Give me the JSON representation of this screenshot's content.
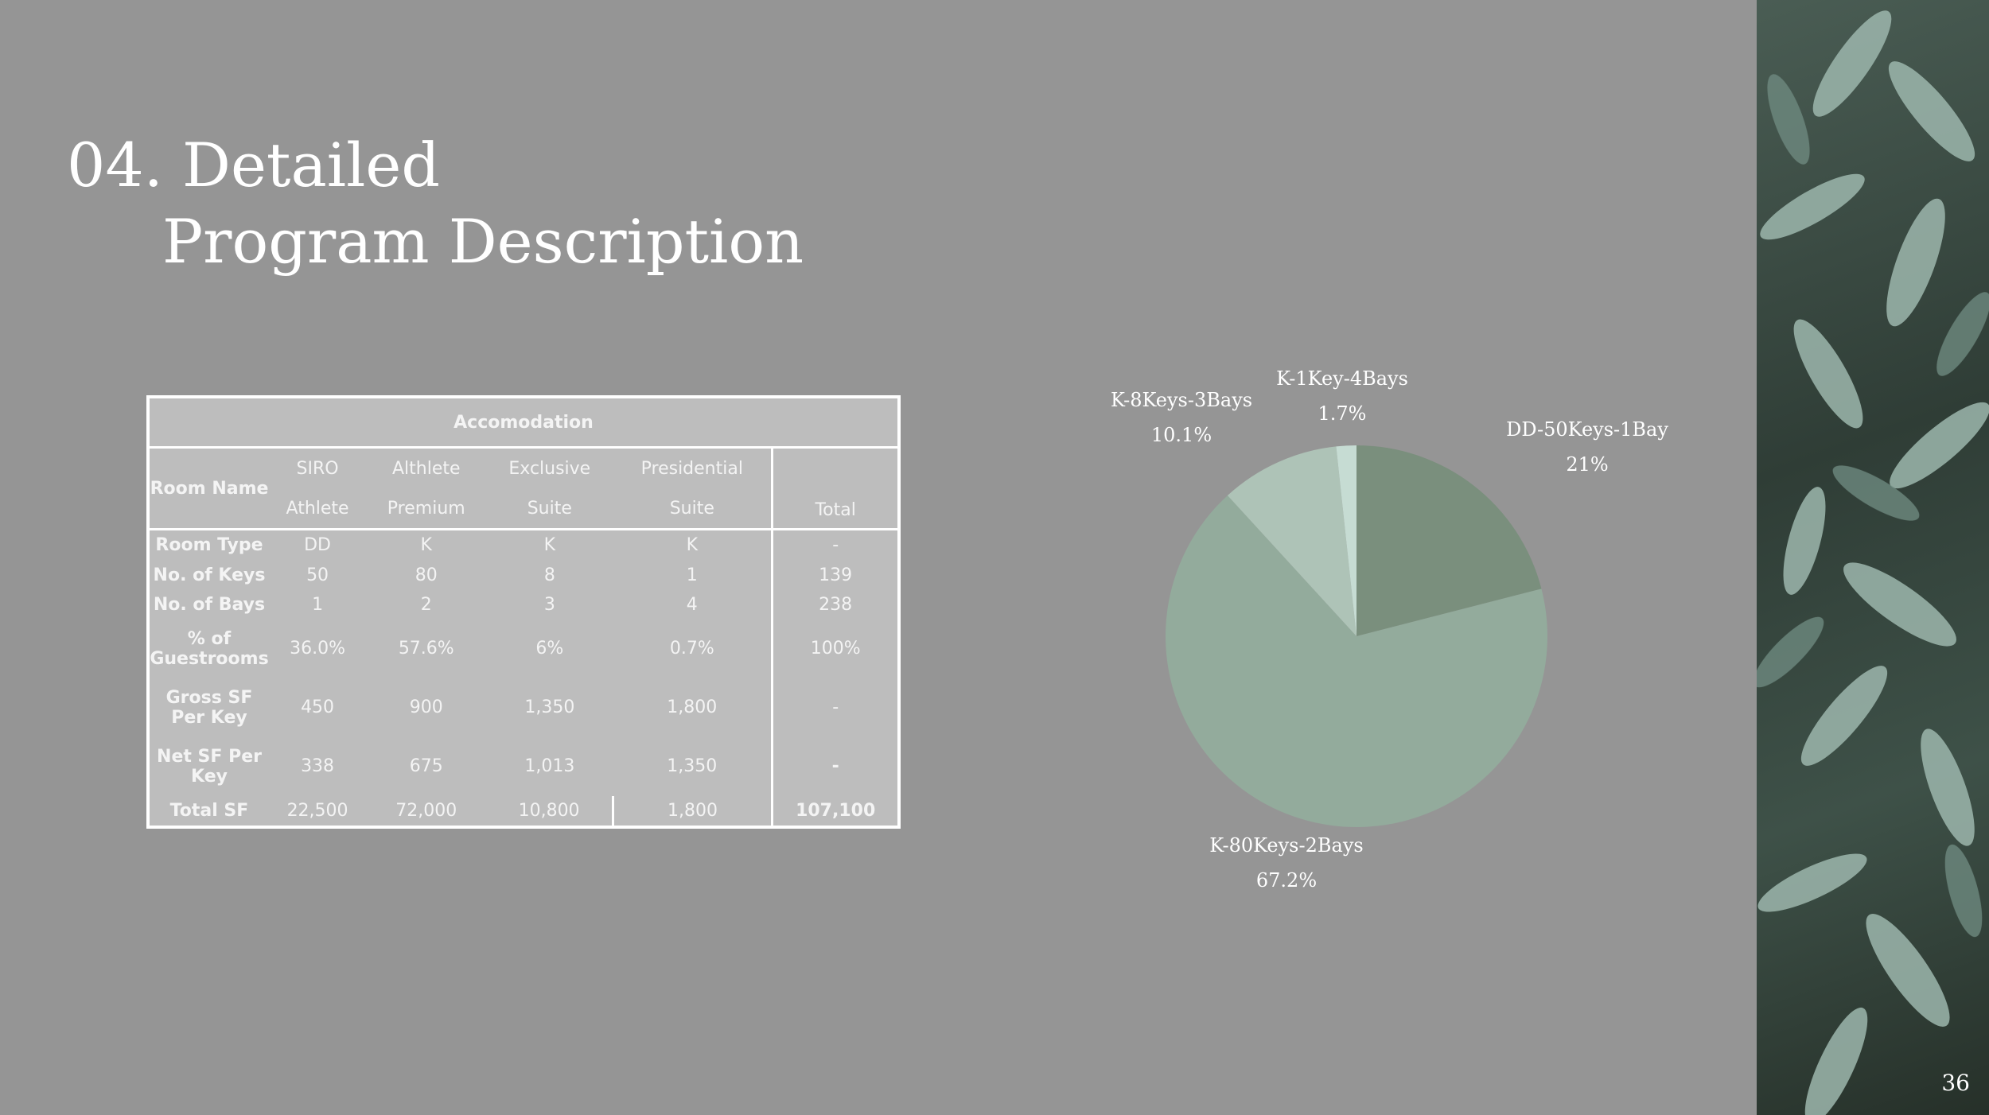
{
  "slide": {
    "title_line1": "04. Detailed",
    "title_line2": "Program Description",
    "page_number": "36"
  },
  "table": {
    "caption": "Accomodation",
    "room_name_label": "Room Name",
    "col1_top": "SIRO",
    "col1_bottom": "Athlete",
    "col2_top": "Althlete",
    "col2_bottom": "Premium",
    "col3_top": "Exclusive",
    "col3_bottom": "Suite",
    "col4_top": "Presidential",
    "col4_bottom": "Suite",
    "total_label": "Total",
    "rows": [
      {
        "label": "Room Type",
        "c1": "DD",
        "c2": "K",
        "c3": "K",
        "c4": "K",
        "total": "-"
      },
      {
        "label": "No. of Keys",
        "c1": "50",
        "c2": "80",
        "c3": "8",
        "c4": "1",
        "total": "139"
      },
      {
        "label": "No. of Bays",
        "c1": "1",
        "c2": "2",
        "c3": "3",
        "c4": "4",
        "total": "238"
      },
      {
        "label": "% of Guestrooms",
        "c1": "36.0%",
        "c2": "57.6%",
        "c3": "6%",
        "c4": "0.7%",
        "total": "100%"
      },
      {
        "label": "Gross SF Per Key",
        "c1": "450",
        "c2": "900",
        "c3": "1,350",
        "c4": "1,800",
        "total": "-"
      },
      {
        "label": "Net SF Per Key",
        "c1": "338",
        "c2": "675",
        "c3": "1,013",
        "c4": "1,350",
        "total": "-"
      },
      {
        "label": "Total SF",
        "c1": "22,500",
        "c2": "72,000",
        "c3": "10,800",
        "c4": "1,800",
        "total": "107,100"
      }
    ]
  },
  "chart_data": {
    "type": "pie",
    "title": "",
    "slices": [
      {
        "label": "DD-50Keys-1Bay",
        "value": 21,
        "value_label": "21%",
        "color": "#7a8f7d"
      },
      {
        "label": "K-80Keys-2Bays",
        "value": 67.2,
        "value_label": "67.2%",
        "color": "#93ab9c"
      },
      {
        "label": "K-8Keys-3Bays",
        "value": 10.1,
        "value_label": "10.1%",
        "color": "#aec3b7"
      },
      {
        "label": "K-1Key-4Bays",
        "value": 1.7,
        "value_label": "1.7%",
        "color": "#c6dcd3"
      }
    ]
  }
}
